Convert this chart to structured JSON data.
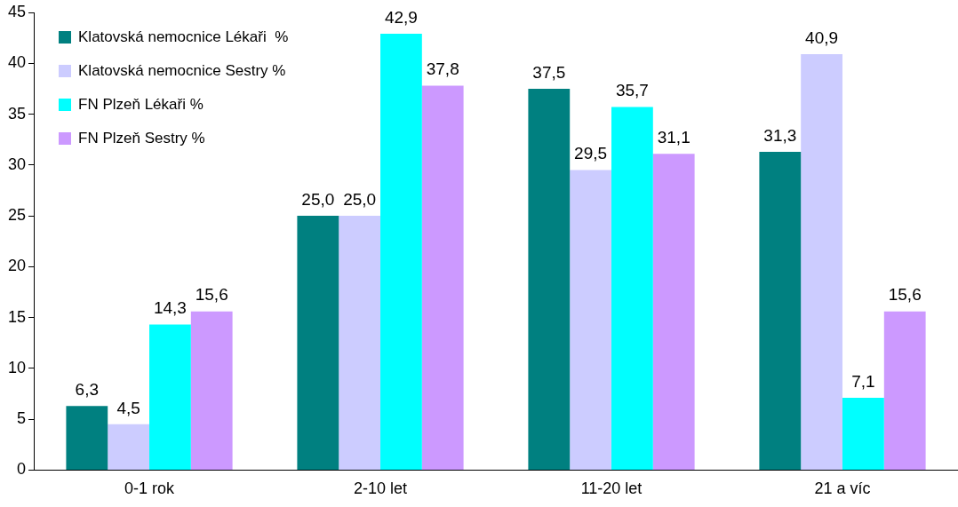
{
  "chart_data": {
    "type": "bar",
    "categories": [
      "0-1 rok",
      "2-10 let",
      "11-20 let",
      "21 a víc"
    ],
    "series": [
      {
        "name": "Klatovská nemocnice Lékaři  %",
        "color": "#008080",
        "values": [
          6.3,
          25.0,
          37.5,
          31.3
        ],
        "value_labels": [
          "6,3",
          "25,0",
          "37,5",
          "31,3"
        ]
      },
      {
        "name": "Klatovská nemocnice Sestry %",
        "color": "#ccccff",
        "values": [
          4.5,
          25.0,
          29.5,
          40.9
        ],
        "value_labels": [
          "4,5",
          "25,0",
          "29,5",
          "40,9"
        ]
      },
      {
        "name": "FN Plzeň Lékaři %",
        "color": "#00ffff",
        "values": [
          14.3,
          42.9,
          35.7,
          7.1
        ],
        "value_labels": [
          "14,3",
          "42,9",
          "35,7",
          "7,1"
        ]
      },
      {
        "name": "FN Plzeň Sestry %",
        "color": "#cc99ff",
        "values": [
          15.6,
          37.8,
          31.1,
          15.6
        ],
        "value_labels": [
          "15,6",
          "37,8",
          "31,1",
          "15,6"
        ]
      }
    ],
    "ylim": [
      0,
      45
    ],
    "yticks": [
      0,
      5,
      10,
      15,
      20,
      25,
      30,
      35,
      40,
      45
    ],
    "grid": false,
    "legend": "top left"
  }
}
